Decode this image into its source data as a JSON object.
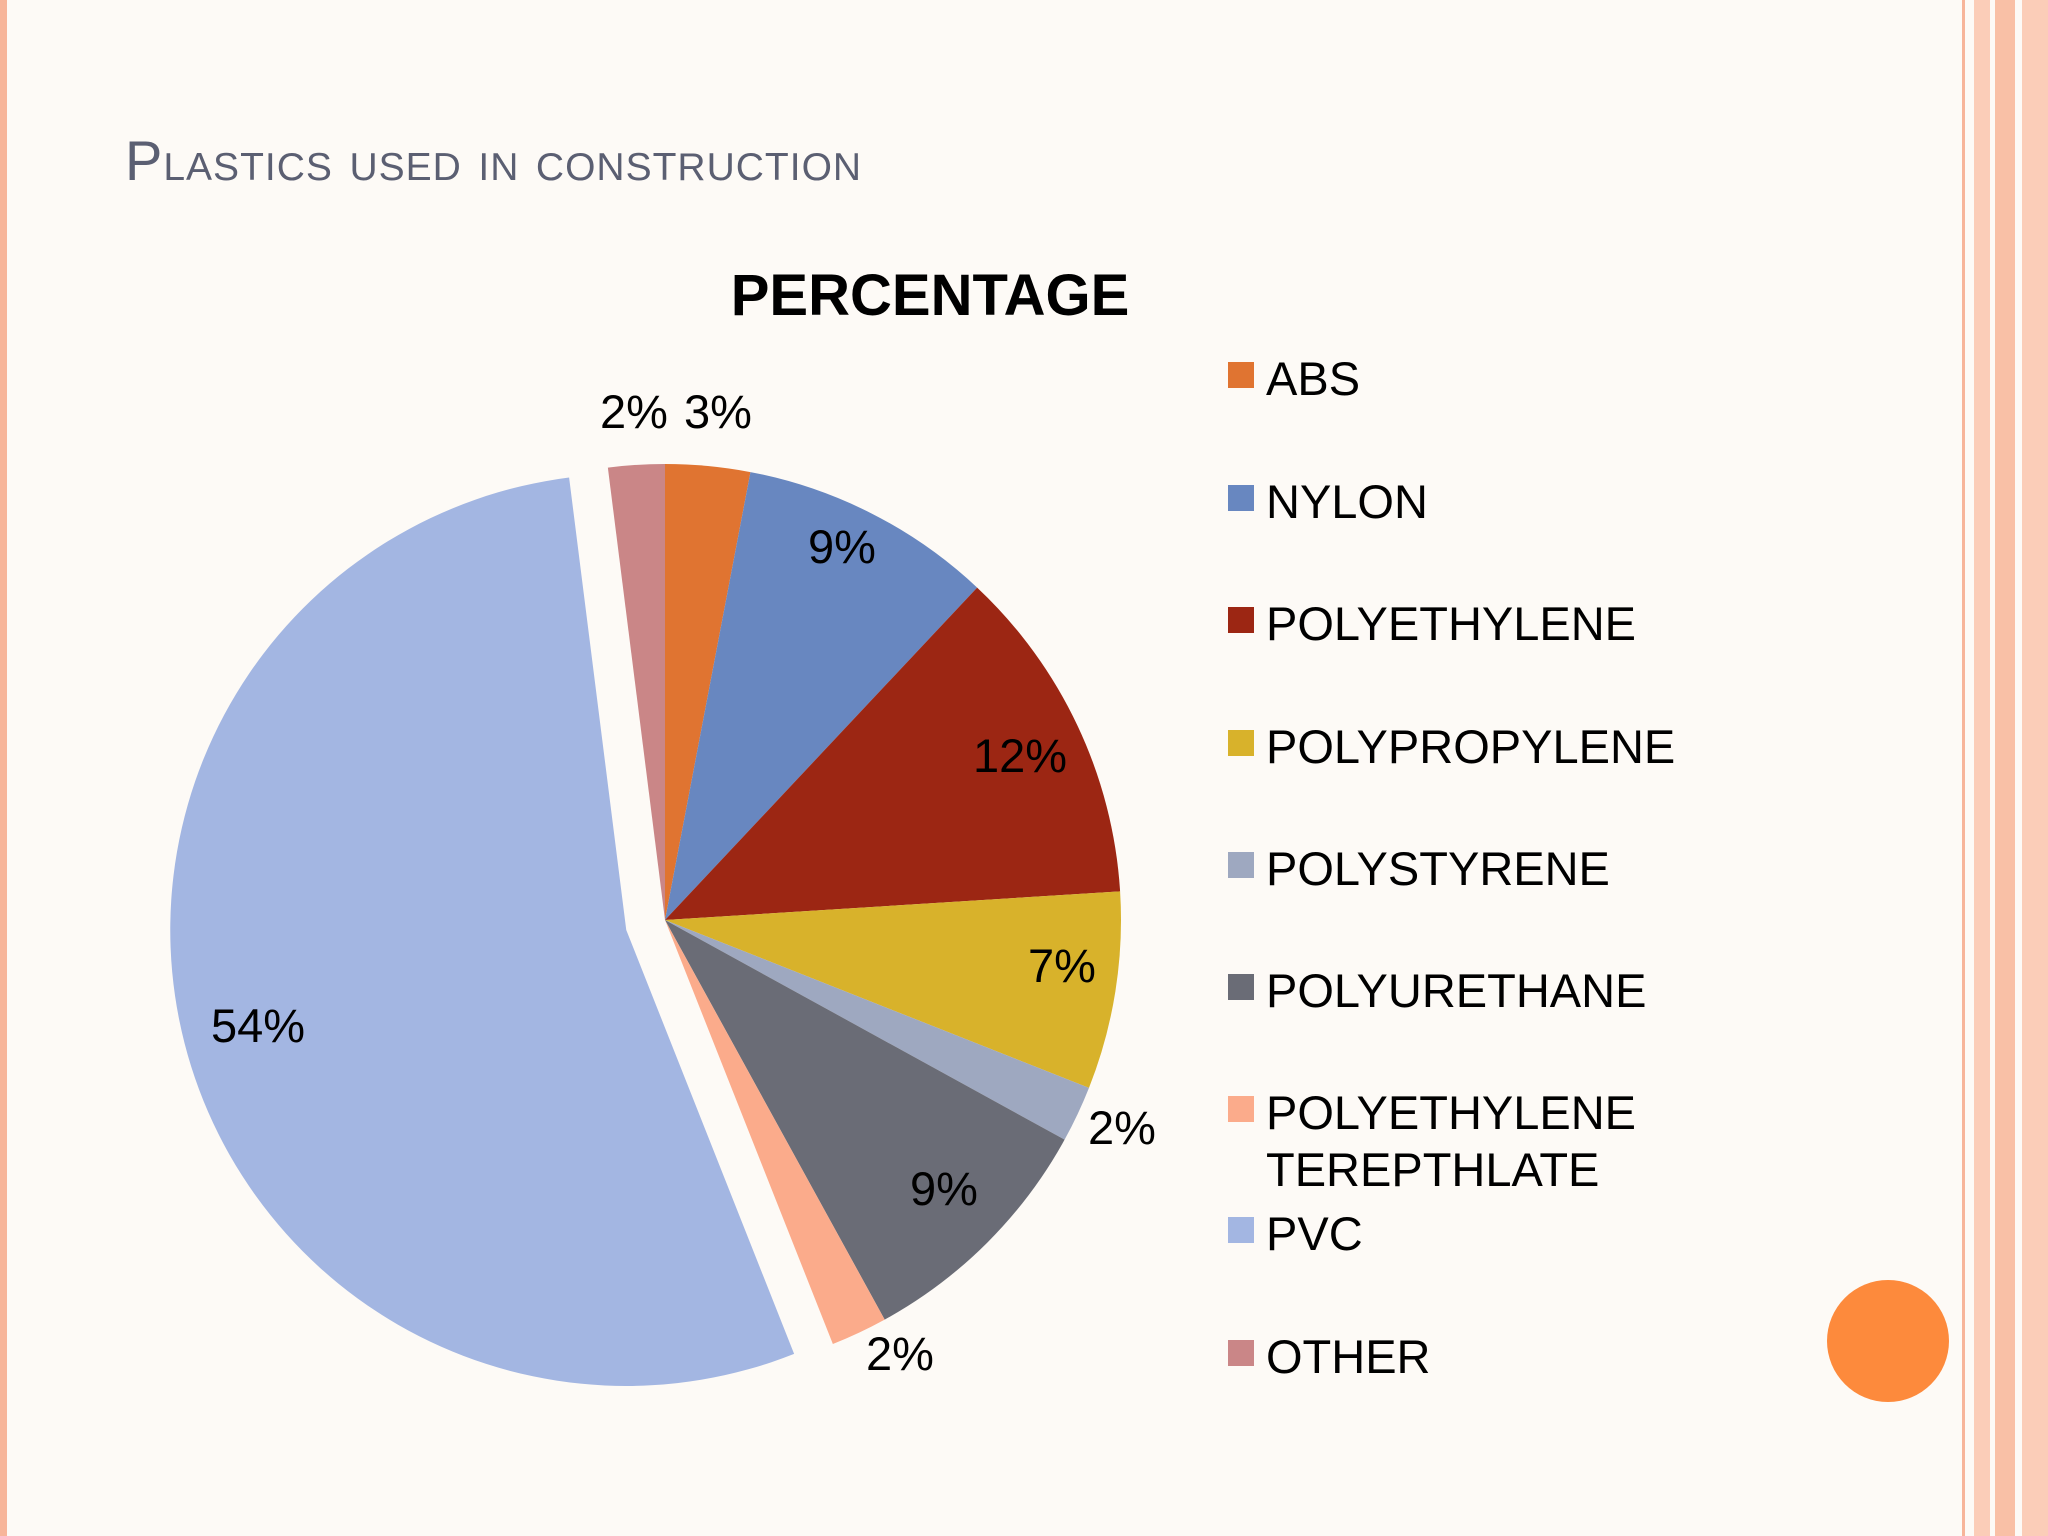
{
  "slide": {
    "title": "Plastics used in construction",
    "accent_colors": [
      "#fd8a3c",
      "#f9c3a9",
      "#fbd6c5"
    ]
  },
  "chart_data": {
    "type": "pie",
    "title": "PERCENTAGE",
    "legend_position": "right",
    "slices": [
      {
        "name": "ABS",
        "value": 3,
        "label": "3%",
        "color": "#e07431",
        "exploded": false
      },
      {
        "name": "NYLON",
        "value": 9,
        "label": "9%",
        "color": "#6887c0",
        "exploded": false
      },
      {
        "name": "POLYETHYLENE",
        "value": 12,
        "label": "12%",
        "color": "#9c2613",
        "exploded": false
      },
      {
        "name": "POLYPROPYLENE",
        "value": 7,
        "label": "7%",
        "color": "#d8b22b",
        "exploded": false
      },
      {
        "name": "POLYSTYRENE",
        "value": 2,
        "label": "2%",
        "color": "#9ea8c0",
        "exploded": false
      },
      {
        "name": "POLYURETHANE",
        "value": 9,
        "label": "9%",
        "color": "#6a6c76",
        "exploded": false
      },
      {
        "name": "POLYETHYLENE TEREPTHLATE",
        "value": 2,
        "label": "2%",
        "color": "#fbab8b",
        "exploded": false
      },
      {
        "name": "PVC",
        "value": 54,
        "label": "54%",
        "color": "#a3b6e2",
        "exploded": true
      },
      {
        "name": "OTHER",
        "value": 2,
        "label": "2%",
        "color": "#ca8687",
        "exploded": false
      }
    ]
  }
}
